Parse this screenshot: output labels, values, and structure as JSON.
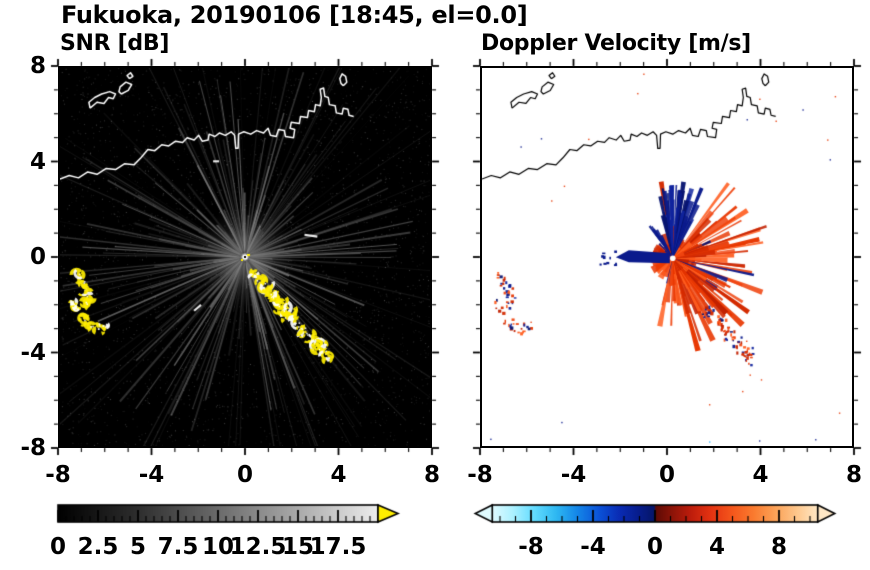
{
  "header": {
    "title": "Fukuoka, 20190106 [18:45, el=0.0]"
  },
  "chart_data": [
    {
      "type": "heatmap",
      "id": "snr",
      "title": "SNR [dB]",
      "xlim": [
        -8,
        8
      ],
      "ylim": [
        -8,
        8
      ],
      "xtick_labels": [
        "-8",
        "-4",
        "0",
        "4",
        "8"
      ],
      "ytick_labels": [
        "8",
        "4",
        "0",
        "-4",
        "-8"
      ],
      "minor_tick_step": 1,
      "background_color": "#000000",
      "coastline_color": "#ffffff",
      "echo_color": "#ffee00",
      "beam_center": [
        0,
        0
      ],
      "bright_dashes": [
        [
          2.85,
          0.9,
          8,
          13
        ],
        [
          -2.05,
          -2.15,
          -40,
          9
        ],
        [
          -1.25,
          4.05,
          0,
          6
        ]
      ],
      "colorbar": {
        "min": 0,
        "max": 20,
        "tick_labels": [
          "0",
          "2.5",
          "5",
          "7.5",
          "10",
          "12.5",
          "15",
          "17.5"
        ],
        "minor_step": 0.5,
        "gradient": [
          {
            "v": 0,
            "c": "#000000"
          },
          {
            "v": 5,
            "c": "#2e2e2e"
          },
          {
            "v": 10,
            "c": "#6b6b6b"
          },
          {
            "v": 15,
            "c": "#aaaaaa"
          },
          {
            "v": 20,
            "c": "#ededed"
          }
        ],
        "over_arrow_color": "#ffee00"
      },
      "coastline": [
        [
          [
            -8.0,
            3.3
          ],
          [
            -7.6,
            3.45
          ],
          [
            -7.2,
            3.35
          ],
          [
            -6.8,
            3.6
          ],
          [
            -6.4,
            3.5
          ],
          [
            -6.0,
            3.75
          ],
          [
            -5.6,
            3.7
          ],
          [
            -5.2,
            3.95
          ],
          [
            -4.8,
            3.9
          ],
          [
            -4.5,
            4.2
          ],
          [
            -4.2,
            4.55
          ],
          [
            -3.9,
            4.5
          ],
          [
            -3.6,
            4.75
          ],
          [
            -3.3,
            4.7
          ],
          [
            -3.0,
            4.9
          ],
          [
            -2.7,
            4.85
          ],
          [
            -2.5,
            5.05
          ],
          [
            -2.2,
            4.95
          ],
          [
            -2.0,
            5.15
          ],
          [
            -1.85,
            4.9
          ],
          [
            -1.6,
            4.95
          ],
          [
            -1.55,
            5.2
          ],
          [
            -1.3,
            5.1
          ],
          [
            -1.1,
            5.25
          ],
          [
            -0.85,
            5.15
          ],
          [
            -0.6,
            5.3
          ],
          [
            -0.45,
            5.15
          ],
          [
            -0.4,
            4.6
          ],
          [
            -0.3,
            4.6
          ],
          [
            -0.28,
            5.2
          ],
          [
            -0.05,
            5.3
          ],
          [
            0.25,
            5.2
          ],
          [
            0.5,
            5.35
          ],
          [
            0.8,
            5.25
          ],
          [
            1.0,
            5.45
          ],
          [
            1.1,
            5.15
          ],
          [
            1.35,
            5.1
          ],
          [
            1.45,
            5.4
          ],
          [
            1.7,
            5.35
          ],
          [
            1.75,
            5.1
          ],
          [
            2.1,
            5.05
          ],
          [
            2.15,
            5.4
          ],
          [
            1.95,
            5.45
          ],
          [
            2.0,
            5.7
          ],
          [
            2.35,
            5.65
          ],
          [
            2.4,
            5.95
          ],
          [
            2.7,
            5.9
          ],
          [
            2.75,
            6.2
          ],
          [
            3.0,
            6.15
          ],
          [
            3.05,
            6.45
          ],
          [
            3.25,
            6.4
          ],
          [
            3.3,
            6.75
          ],
          [
            3.25,
            7.1
          ],
          [
            3.4,
            7.15
          ],
          [
            3.45,
            6.8
          ],
          [
            3.6,
            6.75
          ],
          [
            3.65,
            6.45
          ],
          [
            3.9,
            6.4
          ],
          [
            3.95,
            6.1
          ],
          [
            4.2,
            6.05
          ],
          [
            4.25,
            6.3
          ],
          [
            4.45,
            6.25
          ],
          [
            4.5,
            6.0
          ],
          [
            4.7,
            5.95
          ]
        ],
        [
          [
            -6.7,
            6.3
          ],
          [
            -6.4,
            6.55
          ],
          [
            -6.1,
            6.5
          ],
          [
            -5.9,
            6.75
          ],
          [
            -5.7,
            6.7
          ],
          [
            -5.6,
            6.9
          ],
          [
            -5.85,
            7.0
          ],
          [
            -6.2,
            6.9
          ],
          [
            -6.5,
            6.75
          ],
          [
            -6.75,
            6.55
          ],
          [
            -6.7,
            6.3
          ]
        ],
        [
          [
            -5.35,
            6.9
          ],
          [
            -5.05,
            7.05
          ],
          [
            -4.9,
            7.3
          ],
          [
            -5.15,
            7.4
          ],
          [
            -5.4,
            7.2
          ],
          [
            -5.45,
            7.0
          ],
          [
            -5.35,
            6.9
          ]
        ],
        [
          [
            -5.0,
            7.55
          ],
          [
            -4.85,
            7.65
          ],
          [
            -4.95,
            7.8
          ],
          [
            -5.1,
            7.68
          ],
          [
            -5.0,
            7.55
          ]
        ],
        [
          [
            4.25,
            7.25
          ],
          [
            4.4,
            7.4
          ],
          [
            4.35,
            7.65
          ],
          [
            4.2,
            7.75
          ],
          [
            4.1,
            7.55
          ],
          [
            4.15,
            7.35
          ],
          [
            4.25,
            7.25
          ]
        ]
      ],
      "echo_clusters": {
        "west_arc1": [
          [
            -7.25,
            -0.75
          ],
          [
            -7.05,
            -1.0
          ],
          [
            -6.9,
            -1.3
          ],
          [
            -6.8,
            -1.6
          ],
          [
            -6.85,
            -1.95
          ]
        ],
        "west_arc2": [
          [
            -6.9,
            -2.7
          ],
          [
            -6.65,
            -2.95
          ],
          [
            -6.35,
            -3.05
          ],
          [
            -6.1,
            -2.9
          ]
        ],
        "west_dots": [
          [
            -7.45,
            -1.95
          ],
          [
            -7.3,
            -2.15
          ]
        ],
        "southeast_chain": [
          [
            0.35,
            -0.75
          ],
          [
            0.6,
            -1.0
          ],
          [
            0.85,
            -1.2
          ],
          [
            1.05,
            -1.45
          ],
          [
            1.25,
            -1.65
          ],
          [
            1.45,
            -1.9
          ],
          [
            1.6,
            -2.15
          ],
          [
            1.8,
            -2.4
          ],
          [
            2.05,
            -2.6
          ],
          [
            2.3,
            -2.85
          ],
          [
            2.5,
            -3.1
          ],
          [
            2.7,
            -3.3
          ],
          [
            2.95,
            -3.55
          ],
          [
            3.2,
            -3.8
          ],
          [
            3.45,
            -4.05
          ],
          [
            3.6,
            -4.3
          ]
        ]
      }
    },
    {
      "type": "heatmap",
      "id": "doppler",
      "title": "Doppler Velocity [m/s]",
      "xlim": [
        -8,
        8
      ],
      "ylim": [
        -8,
        8
      ],
      "xtick_labels": [
        "-8",
        "-4",
        "0",
        "4",
        "8"
      ],
      "minor_tick_step": 1,
      "background_color": "#ffffff",
      "coastline_color": "#000000",
      "beam_center": [
        0.25,
        -0.05
      ],
      "fan": {
        "toward_colors": [
          "#d42a00",
          "#e83600",
          "#f04510",
          "#c22000",
          "#ff5c1e"
        ],
        "away_colors": [
          "#0a1a8c",
          "#071470",
          "#10249e"
        ],
        "bar_color": "#0a1a8c"
      },
      "colorbar": {
        "min": -10.5,
        "max": 10.5,
        "tick_labels": [
          "-8",
          "-4",
          "0",
          "4",
          "8"
        ],
        "minor_step": 1,
        "gradient": [
          {
            "v": -10.5,
            "c": "#e0fbff"
          },
          {
            "v": -9.2,
            "c": "#aef2ff"
          },
          {
            "v": -7.8,
            "c": "#63dcff"
          },
          {
            "v": -6.4,
            "c": "#2fb9f2"
          },
          {
            "v": -5.0,
            "c": "#1486e8"
          },
          {
            "v": -3.6,
            "c": "#0b52d8"
          },
          {
            "v": -2.3,
            "c": "#0a2cb4"
          },
          {
            "v": -1.1,
            "c": "#071d8e"
          },
          {
            "v": -0.05,
            "c": "#051668"
          },
          {
            "v": 0.05,
            "c": "#5e0b05"
          },
          {
            "v": 1.1,
            "c": "#8c1408"
          },
          {
            "v": 2.3,
            "c": "#bd1d0c"
          },
          {
            "v": 3.6,
            "c": "#e43312"
          },
          {
            "v": 5.0,
            "c": "#f5571c"
          },
          {
            "v": 6.4,
            "c": "#fa7c30"
          },
          {
            "v": 7.8,
            "c": "#fca359"
          },
          {
            "v": 9.2,
            "c": "#fec88e"
          },
          {
            "v": 10.5,
            "c": "#ffe8c6"
          }
        ],
        "under_arrow_color": "#e0fbff",
        "over_arrow_color": "#ffe8c6"
      }
    }
  ]
}
